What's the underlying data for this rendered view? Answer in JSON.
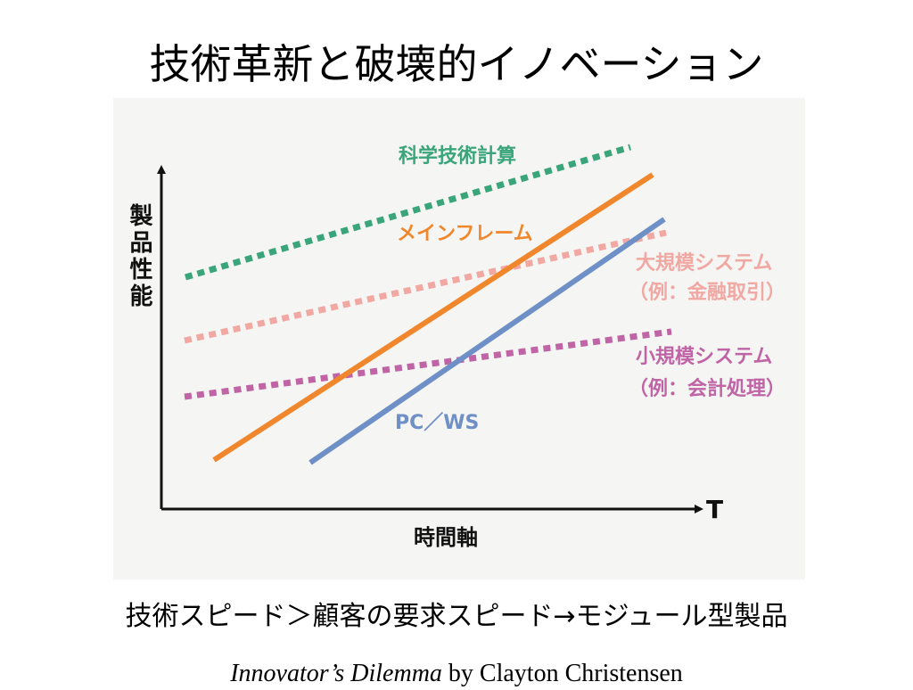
{
  "slide": {
    "title": "技術革新と破壊的イノベーション",
    "caption": "技術スピード＞顧客の要求スピード→モジュール型製品",
    "citation": {
      "book": "Innovator’s Dilemma",
      "rest": " by Clayton Christensen"
    }
  },
  "diagram": {
    "y_axis_label": "製品性能",
    "x_axis_label": "時間軸",
    "x_axis_end_label": "T",
    "colors": {
      "axis": "#111111",
      "science": "#3aa57a",
      "mainframe": "#f0872c",
      "pcws": "#6f8fc7",
      "large": "#f2a8a2",
      "small": "#c064a6",
      "panel": "#f5f5f3"
    },
    "lines": [
      {
        "id": "science",
        "label": "科学技術計算",
        "style": "dotted"
      },
      {
        "id": "mainframe",
        "label": "メインフレーム",
        "style": "solid"
      },
      {
        "id": "large",
        "label": "大規模システム",
        "sublabel": "（例：金融取引）",
        "style": "dotted"
      },
      {
        "id": "small",
        "label": "小規模システム",
        "sublabel": "（例：会計処理）",
        "style": "dotted"
      },
      {
        "id": "pcws",
        "label": "PC／WS",
        "style": "solid"
      }
    ]
  }
}
